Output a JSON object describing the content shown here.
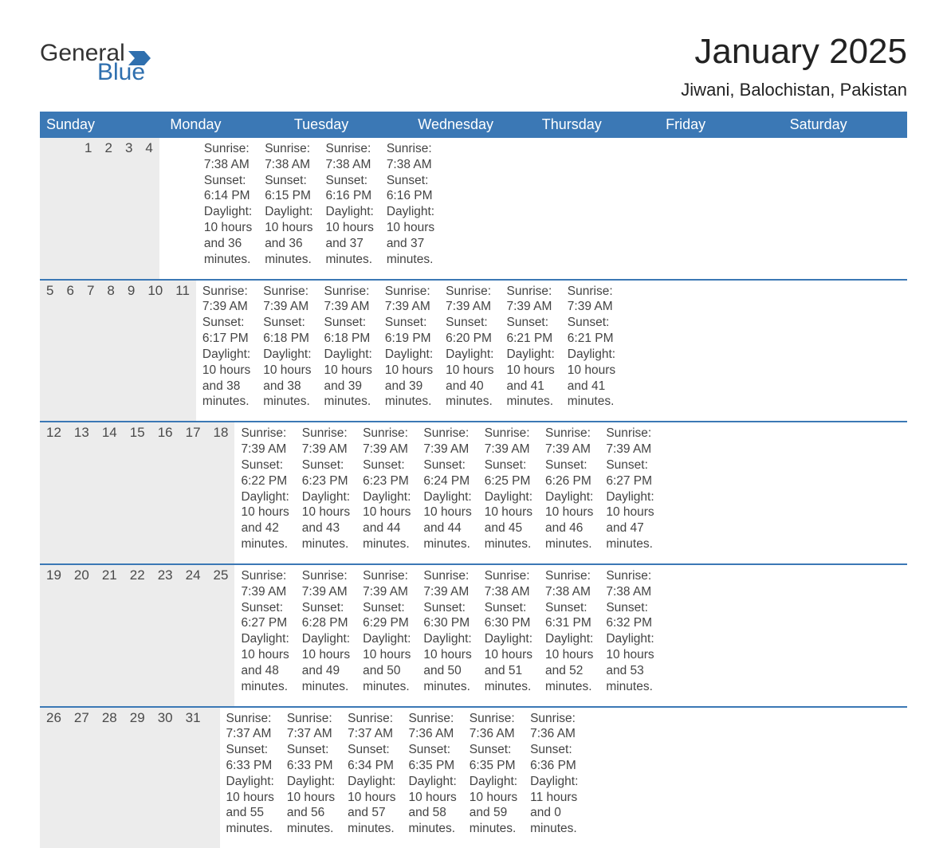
{
  "brand": {
    "general": "General",
    "blue": "Blue"
  },
  "colors": {
    "header_blue": "#3b78b5",
    "accent_blue": "#2f6fae",
    "daynum_bg": "#ececec",
    "row_border": "#3b78b5",
    "background": "#ffffff",
    "text": "#222222"
  },
  "title": "January 2025",
  "location": "Jiwani, Balochistan, Pakistan",
  "weekdays": [
    "Sunday",
    "Monday",
    "Tuesday",
    "Wednesday",
    "Thursday",
    "Friday",
    "Saturday"
  ],
  "weeks": [
    {
      "days": [
        {
          "num": "",
          "sunrise": "",
          "sunset": "",
          "daylight1": "",
          "daylight2": ""
        },
        {
          "num": "",
          "sunrise": "",
          "sunset": "",
          "daylight1": "",
          "daylight2": ""
        },
        {
          "num": "",
          "sunrise": "",
          "sunset": "",
          "daylight1": "",
          "daylight2": ""
        },
        {
          "num": "1",
          "sunrise": "Sunrise: 7:38 AM",
          "sunset": "Sunset: 6:14 PM",
          "daylight1": "Daylight: 10 hours",
          "daylight2": "and 36 minutes."
        },
        {
          "num": "2",
          "sunrise": "Sunrise: 7:38 AM",
          "sunset": "Sunset: 6:15 PM",
          "daylight1": "Daylight: 10 hours",
          "daylight2": "and 36 minutes."
        },
        {
          "num": "3",
          "sunrise": "Sunrise: 7:38 AM",
          "sunset": "Sunset: 6:16 PM",
          "daylight1": "Daylight: 10 hours",
          "daylight2": "and 37 minutes."
        },
        {
          "num": "4",
          "sunrise": "Sunrise: 7:38 AM",
          "sunset": "Sunset: 6:16 PM",
          "daylight1": "Daylight: 10 hours",
          "daylight2": "and 37 minutes."
        }
      ]
    },
    {
      "days": [
        {
          "num": "5",
          "sunrise": "Sunrise: 7:39 AM",
          "sunset": "Sunset: 6:17 PM",
          "daylight1": "Daylight: 10 hours",
          "daylight2": "and 38 minutes."
        },
        {
          "num": "6",
          "sunrise": "Sunrise: 7:39 AM",
          "sunset": "Sunset: 6:18 PM",
          "daylight1": "Daylight: 10 hours",
          "daylight2": "and 38 minutes."
        },
        {
          "num": "7",
          "sunrise": "Sunrise: 7:39 AM",
          "sunset": "Sunset: 6:18 PM",
          "daylight1": "Daylight: 10 hours",
          "daylight2": "and 39 minutes."
        },
        {
          "num": "8",
          "sunrise": "Sunrise: 7:39 AM",
          "sunset": "Sunset: 6:19 PM",
          "daylight1": "Daylight: 10 hours",
          "daylight2": "and 39 minutes."
        },
        {
          "num": "9",
          "sunrise": "Sunrise: 7:39 AM",
          "sunset": "Sunset: 6:20 PM",
          "daylight1": "Daylight: 10 hours",
          "daylight2": "and 40 minutes."
        },
        {
          "num": "10",
          "sunrise": "Sunrise: 7:39 AM",
          "sunset": "Sunset: 6:21 PM",
          "daylight1": "Daylight: 10 hours",
          "daylight2": "and 41 minutes."
        },
        {
          "num": "11",
          "sunrise": "Sunrise: 7:39 AM",
          "sunset": "Sunset: 6:21 PM",
          "daylight1": "Daylight: 10 hours",
          "daylight2": "and 41 minutes."
        }
      ]
    },
    {
      "days": [
        {
          "num": "12",
          "sunrise": "Sunrise: 7:39 AM",
          "sunset": "Sunset: 6:22 PM",
          "daylight1": "Daylight: 10 hours",
          "daylight2": "and 42 minutes."
        },
        {
          "num": "13",
          "sunrise": "Sunrise: 7:39 AM",
          "sunset": "Sunset: 6:23 PM",
          "daylight1": "Daylight: 10 hours",
          "daylight2": "and 43 minutes."
        },
        {
          "num": "14",
          "sunrise": "Sunrise: 7:39 AM",
          "sunset": "Sunset: 6:23 PM",
          "daylight1": "Daylight: 10 hours",
          "daylight2": "and 44 minutes."
        },
        {
          "num": "15",
          "sunrise": "Sunrise: 7:39 AM",
          "sunset": "Sunset: 6:24 PM",
          "daylight1": "Daylight: 10 hours",
          "daylight2": "and 44 minutes."
        },
        {
          "num": "16",
          "sunrise": "Sunrise: 7:39 AM",
          "sunset": "Sunset: 6:25 PM",
          "daylight1": "Daylight: 10 hours",
          "daylight2": "and 45 minutes."
        },
        {
          "num": "17",
          "sunrise": "Sunrise: 7:39 AM",
          "sunset": "Sunset: 6:26 PM",
          "daylight1": "Daylight: 10 hours",
          "daylight2": "and 46 minutes."
        },
        {
          "num": "18",
          "sunrise": "Sunrise: 7:39 AM",
          "sunset": "Sunset: 6:27 PM",
          "daylight1": "Daylight: 10 hours",
          "daylight2": "and 47 minutes."
        }
      ]
    },
    {
      "days": [
        {
          "num": "19",
          "sunrise": "Sunrise: 7:39 AM",
          "sunset": "Sunset: 6:27 PM",
          "daylight1": "Daylight: 10 hours",
          "daylight2": "and 48 minutes."
        },
        {
          "num": "20",
          "sunrise": "Sunrise: 7:39 AM",
          "sunset": "Sunset: 6:28 PM",
          "daylight1": "Daylight: 10 hours",
          "daylight2": "and 49 minutes."
        },
        {
          "num": "21",
          "sunrise": "Sunrise: 7:39 AM",
          "sunset": "Sunset: 6:29 PM",
          "daylight1": "Daylight: 10 hours",
          "daylight2": "and 50 minutes."
        },
        {
          "num": "22",
          "sunrise": "Sunrise: 7:39 AM",
          "sunset": "Sunset: 6:30 PM",
          "daylight1": "Daylight: 10 hours",
          "daylight2": "and 50 minutes."
        },
        {
          "num": "23",
          "sunrise": "Sunrise: 7:38 AM",
          "sunset": "Sunset: 6:30 PM",
          "daylight1": "Daylight: 10 hours",
          "daylight2": "and 51 minutes."
        },
        {
          "num": "24",
          "sunrise": "Sunrise: 7:38 AM",
          "sunset": "Sunset: 6:31 PM",
          "daylight1": "Daylight: 10 hours",
          "daylight2": "and 52 minutes."
        },
        {
          "num": "25",
          "sunrise": "Sunrise: 7:38 AM",
          "sunset": "Sunset: 6:32 PM",
          "daylight1": "Daylight: 10 hours",
          "daylight2": "and 53 minutes."
        }
      ]
    },
    {
      "days": [
        {
          "num": "26",
          "sunrise": "Sunrise: 7:37 AM",
          "sunset": "Sunset: 6:33 PM",
          "daylight1": "Daylight: 10 hours",
          "daylight2": "and 55 minutes."
        },
        {
          "num": "27",
          "sunrise": "Sunrise: 7:37 AM",
          "sunset": "Sunset: 6:33 PM",
          "daylight1": "Daylight: 10 hours",
          "daylight2": "and 56 minutes."
        },
        {
          "num": "28",
          "sunrise": "Sunrise: 7:37 AM",
          "sunset": "Sunset: 6:34 PM",
          "daylight1": "Daylight: 10 hours",
          "daylight2": "and 57 minutes."
        },
        {
          "num": "29",
          "sunrise": "Sunrise: 7:36 AM",
          "sunset": "Sunset: 6:35 PM",
          "daylight1": "Daylight: 10 hours",
          "daylight2": "and 58 minutes."
        },
        {
          "num": "30",
          "sunrise": "Sunrise: 7:36 AM",
          "sunset": "Sunset: 6:35 PM",
          "daylight1": "Daylight: 10 hours",
          "daylight2": "and 59 minutes."
        },
        {
          "num": "31",
          "sunrise": "Sunrise: 7:36 AM",
          "sunset": "Sunset: 6:36 PM",
          "daylight1": "Daylight: 11 hours",
          "daylight2": "and 0 minutes."
        },
        {
          "num": "",
          "sunrise": "",
          "sunset": "",
          "daylight1": "",
          "daylight2": ""
        }
      ]
    }
  ]
}
